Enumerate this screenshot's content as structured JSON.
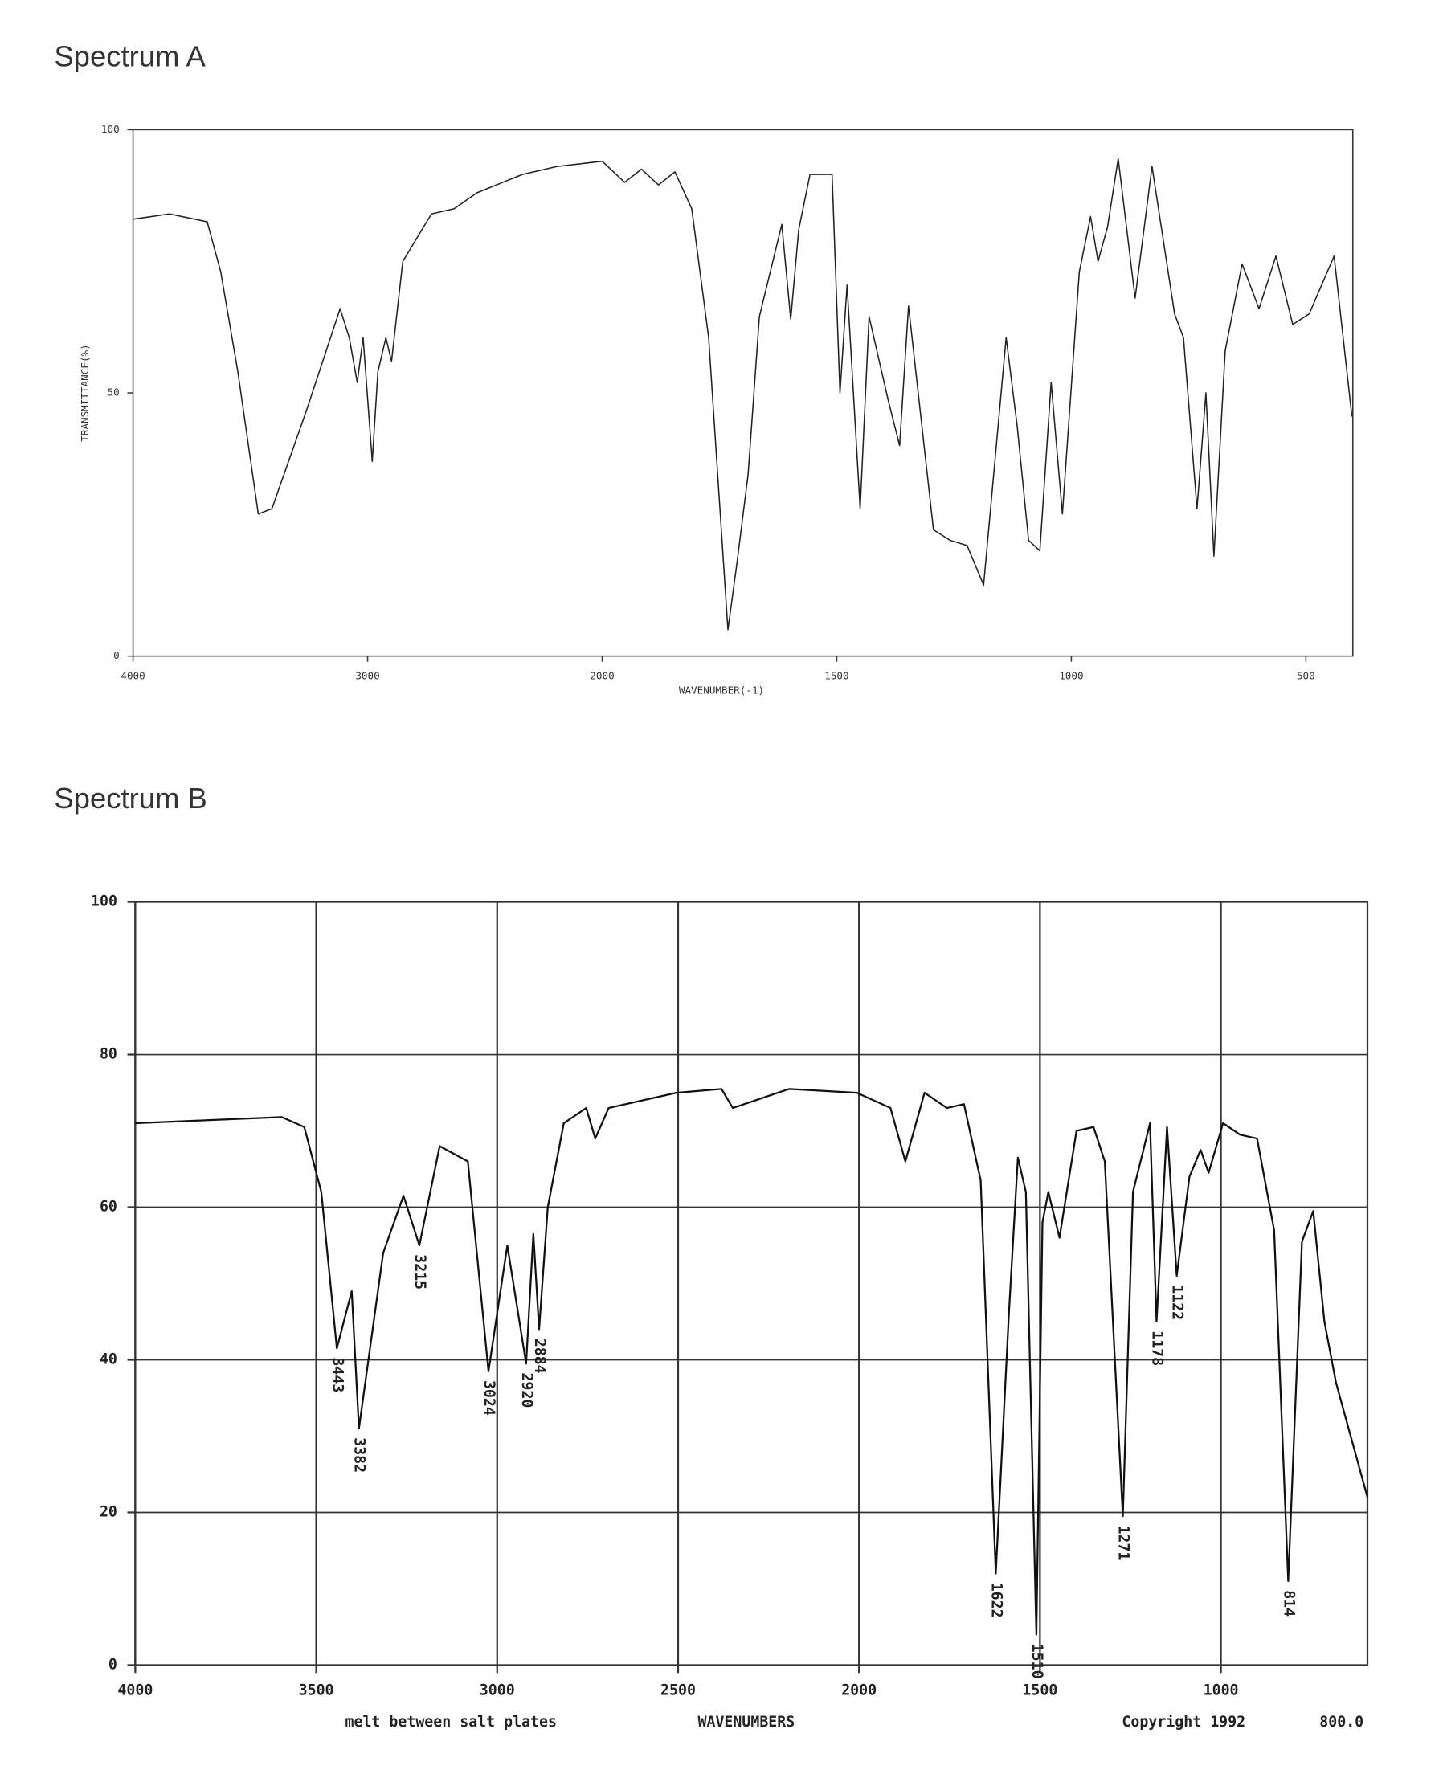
{
  "chart_data": [
    {
      "type": "line",
      "title": "Spectrum A",
      "x_label": "WAVENUMBER(-1)",
      "y_label": "TRANSMITTANCE(%)",
      "xlim": [
        4000,
        400
      ],
      "ylim": [
        0,
        100
      ],
      "xticks": [
        4000,
        3000,
        2000,
        1500,
        1000,
        500
      ],
      "yticks": [
        0,
        50,
        100
      ],
      "grid": false,
      "color": "#222222",
      "x": [
        4000,
        3845,
        3684,
        3626,
        3553,
        3466,
        3408,
        3262,
        3117,
        3078,
        3044,
        3019,
        2980,
        2956,
        2922,
        2898,
        2850,
        2728,
        2631,
        2534,
        2340,
        2194,
        2000,
        1952,
        1916,
        1880,
        1845,
        1809,
        1773,
        1732,
        1713,
        1689,
        1665,
        1617,
        1598,
        1581,
        1557,
        1510,
        1493,
        1478,
        1450,
        1431,
        1390,
        1366,
        1347,
        1294,
        1258,
        1222,
        1187,
        1139,
        1115,
        1091,
        1067,
        1043,
        1019,
        983,
        959,
        943,
        923,
        900,
        864,
        828,
        780,
        761,
        732,
        713,
        696,
        672,
        636,
        600,
        564,
        528,
        493,
        440,
        402
      ],
      "values": [
        83,
        84,
        82.5,
        73,
        54,
        27,
        28,
        46.5,
        66,
        60.5,
        52,
        60.5,
        37,
        54,
        60.5,
        56,
        75,
        84,
        85,
        88,
        91.5,
        93,
        94,
        90,
        92.5,
        89.5,
        92,
        85,
        60.5,
        5,
        17.5,
        34.5,
        64.5,
        82,
        64,
        81,
        91.5,
        91.5,
        50,
        70.5,
        28,
        64.5,
        48.5,
        40,
        66.5,
        24,
        22,
        21,
        13.5,
        60.5,
        43.5,
        22,
        20,
        52,
        27,
        73,
        83.5,
        75,
        81.5,
        94.5,
        68,
        93,
        65,
        60.5,
        28,
        50,
        19,
        58,
        74.5,
        66,
        76,
        63,
        65,
        76,
        45.5
      ]
    },
    {
      "type": "line",
      "title": "Spectrum B",
      "x_label": "WAVENUMBERS",
      "annotations": [
        "melt between salt plates",
        "Copyright 1992",
        "800.0"
      ],
      "xlim": [
        4000,
        595
      ],
      "ylim": [
        0,
        100
      ],
      "xticks": [
        4000,
        3500,
        3000,
        2500,
        2000,
        1500,
        1000
      ],
      "yticks": [
        0,
        20,
        40,
        60,
        80,
        100
      ],
      "grid": true,
      "color": "#111111",
      "peak_labels": [
        3443,
        3382,
        3215,
        3024,
        2920,
        2884,
        1622,
        1510,
        1271,
        1178,
        1122,
        814
      ],
      "x": [
        4000,
        3595,
        3533,
        3486,
        3443,
        3402,
        3382,
        3315,
        3259,
        3215,
        3159,
        3081,
        3024,
        2972,
        2920,
        2900,
        2884,
        2860,
        2816,
        2754,
        2729,
        2692,
        2505,
        2380,
        2349,
        2193,
        2006,
        1913,
        1872,
        1819,
        1757,
        1710,
        1664,
        1622,
        1586,
        1561,
        1539,
        1510,
        1493,
        1477,
        1446,
        1399,
        1352,
        1321,
        1271,
        1243,
        1196,
        1178,
        1149,
        1122,
        1087,
        1056,
        1034,
        994,
        947,
        900,
        853,
        814,
        776,
        745,
        714,
        682,
        595
      ],
      "values": [
        71,
        71.8,
        70.5,
        62,
        41.5,
        49,
        31,
        54,
        61.5,
        55,
        68,
        66,
        38.5,
        55,
        39.5,
        56.5,
        44,
        60,
        71,
        73,
        69,
        73,
        75,
        75.5,
        73,
        75.5,
        75,
        73,
        66,
        75,
        73,
        73.5,
        63.5,
        12,
        46,
        66.5,
        62,
        4,
        58,
        62,
        56,
        70,
        70.5,
        66,
        19.5,
        62,
        71,
        45,
        70.5,
        51,
        64,
        67.5,
        64.5,
        71,
        69.5,
        69,
        57,
        11,
        55.5,
        59.5,
        45,
        37,
        22
      ]
    }
  ]
}
